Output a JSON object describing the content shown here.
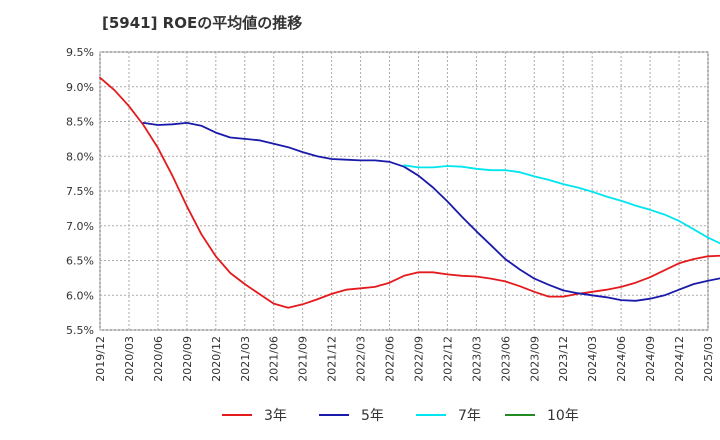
{
  "chart_data": {
    "type": "line",
    "title": "[5941]  ROEの平均値の推移",
    "xlabel": "",
    "ylabel": "",
    "ylim": [
      5.5,
      9.5
    ],
    "yticks": [
      "9.5%",
      "9.0%",
      "8.5%",
      "8.0%",
      "7.5%",
      "7.0%",
      "6.5%",
      "6.0%",
      "5.5%"
    ],
    "ytick_values": [
      9.5,
      9.0,
      8.5,
      8.0,
      7.5,
      7.0,
      6.5,
      6.0,
      5.5
    ],
    "xticks": [
      "2019/12",
      "2020/03",
      "2020/06",
      "2020/09",
      "2020/12",
      "2021/03",
      "2021/06",
      "2021/09",
      "2021/12",
      "2022/03",
      "2022/06",
      "2022/09",
      "2022/12",
      "2023/03",
      "2023/06",
      "2023/09",
      "2023/12",
      "2024/03",
      "2024/06",
      "2024/09",
      "2024/12",
      "2025/03"
    ],
    "legend_position": "bottom",
    "grid": true,
    "series": [
      {
        "name": "3年",
        "color": "#e41a1c",
        "points": [
          [
            0,
            9.13
          ],
          [
            1,
            8.95
          ],
          [
            2,
            8.72
          ],
          [
            3,
            8.45
          ],
          [
            4,
            8.12
          ],
          [
            5,
            7.72
          ],
          [
            6,
            7.28
          ],
          [
            7,
            6.88
          ],
          [
            8,
            6.56
          ],
          [
            9,
            6.32
          ],
          [
            10,
            6.16
          ],
          [
            11,
            6.02
          ],
          [
            12,
            5.88
          ],
          [
            13,
            5.82
          ],
          [
            14,
            5.87
          ],
          [
            15,
            5.94
          ],
          [
            16,
            6.02
          ],
          [
            17,
            6.08
          ],
          [
            18,
            6.1
          ],
          [
            19,
            6.12
          ],
          [
            20,
            6.18
          ],
          [
            21,
            6.28
          ],
          [
            22,
            6.33
          ],
          [
            23,
            6.33
          ],
          [
            24,
            6.3
          ],
          [
            25,
            6.28
          ],
          [
            26,
            6.27
          ],
          [
            27,
            6.24
          ],
          [
            28,
            6.2
          ],
          [
            29,
            6.13
          ],
          [
            30,
            6.05
          ],
          [
            31,
            5.98
          ],
          [
            32,
            5.98
          ],
          [
            33,
            6.02
          ],
          [
            34,
            6.05
          ],
          [
            35,
            6.08
          ],
          [
            36,
            6.12
          ],
          [
            37,
            6.18
          ],
          [
            38,
            6.26
          ],
          [
            39,
            6.36
          ],
          [
            40,
            6.46
          ],
          [
            41,
            6.52
          ],
          [
            42,
            6.56
          ],
          [
            43,
            6.57
          ],
          [
            44,
            6.6
          ],
          [
            45,
            6.63
          ]
        ]
      },
      {
        "name": "5年",
        "color": "#1a1aaa",
        "points": [
          [
            3,
            8.48
          ],
          [
            4,
            8.45
          ],
          [
            5,
            8.46
          ],
          [
            6,
            8.48
          ],
          [
            7,
            8.44
          ],
          [
            8,
            8.34
          ],
          [
            9,
            8.27
          ],
          [
            10,
            8.25
          ],
          [
            11,
            8.23
          ],
          [
            12,
            8.18
          ],
          [
            13,
            8.13
          ],
          [
            14,
            8.06
          ],
          [
            15,
            8.0
          ],
          [
            16,
            7.96
          ],
          [
            17,
            7.95
          ],
          [
            18,
            7.94
          ],
          [
            19,
            7.94
          ],
          [
            20,
            7.92
          ],
          [
            21,
            7.85
          ],
          [
            22,
            7.72
          ],
          [
            23,
            7.55
          ],
          [
            24,
            7.35
          ],
          [
            25,
            7.13
          ],
          [
            26,
            6.92
          ],
          [
            27,
            6.72
          ],
          [
            28,
            6.52
          ],
          [
            29,
            6.37
          ],
          [
            30,
            6.24
          ],
          [
            31,
            6.15
          ],
          [
            32,
            6.07
          ],
          [
            33,
            6.03
          ],
          [
            34,
            6.0
          ],
          [
            35,
            5.97
          ],
          [
            36,
            5.93
          ],
          [
            37,
            5.92
          ],
          [
            38,
            5.95
          ],
          [
            39,
            6.0
          ],
          [
            40,
            6.08
          ],
          [
            41,
            6.16
          ],
          [
            42,
            6.21
          ],
          [
            43,
            6.25
          ],
          [
            44,
            6.33
          ],
          [
            45,
            6.43
          ]
        ]
      },
      {
        "name": "7年",
        "color": "#00e5ee",
        "points": [
          [
            21,
            7.87
          ],
          [
            22,
            7.84
          ],
          [
            23,
            7.84
          ],
          [
            24,
            7.86
          ],
          [
            25,
            7.85
          ],
          [
            26,
            7.82
          ],
          [
            27,
            7.8
          ],
          [
            28,
            7.8
          ],
          [
            29,
            7.77
          ],
          [
            30,
            7.71
          ],
          [
            31,
            7.66
          ],
          [
            32,
            7.6
          ],
          [
            33,
            7.55
          ],
          [
            34,
            7.49
          ],
          [
            35,
            7.42
          ],
          [
            36,
            7.36
          ],
          [
            37,
            7.29
          ],
          [
            38,
            7.23
          ],
          [
            39,
            7.16
          ],
          [
            40,
            7.07
          ],
          [
            41,
            6.95
          ],
          [
            42,
            6.83
          ],
          [
            43,
            6.73
          ],
          [
            44,
            6.67
          ],
          [
            45,
            6.64
          ]
        ]
      },
      {
        "name": "10年",
        "color": "#228b22",
        "points": []
      }
    ]
  }
}
